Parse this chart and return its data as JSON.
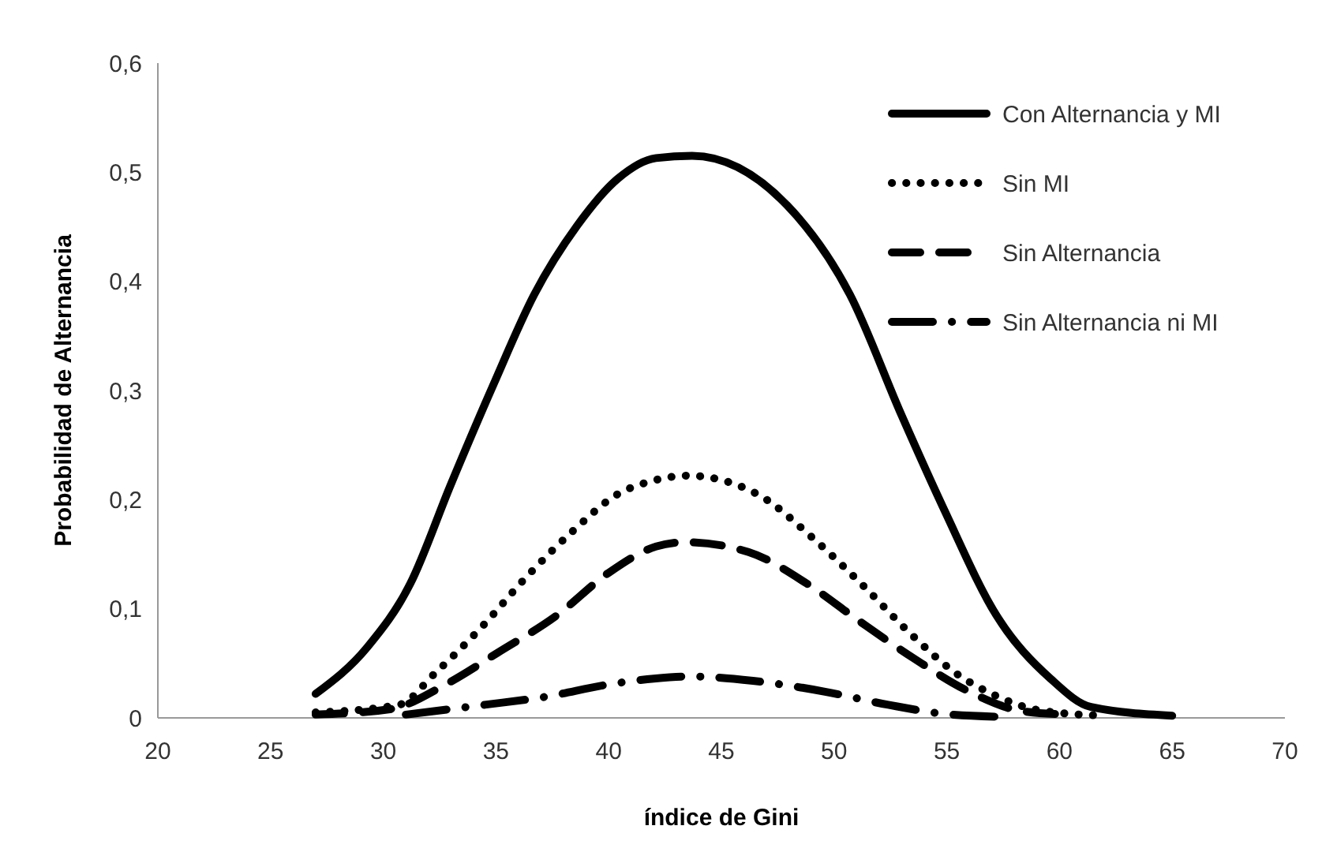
{
  "chart_data": {
    "type": "line",
    "xlabel": "índice de Gini",
    "ylabel": "Probabilidad de Alternancia",
    "xlim": [
      20,
      70
    ],
    "xticks": [
      20,
      25,
      30,
      35,
      40,
      45,
      50,
      55,
      60,
      65,
      70
    ],
    "ylim": [
      0,
      0.6
    ],
    "yticks": [
      0,
      {
        "value": 0.1,
        "label": "0,1"
      },
      {
        "value": 0.2,
        "label": "0,2"
      },
      {
        "value": 0.3,
        "label": "0,3"
      },
      {
        "value": 0.4,
        "label": "0,4"
      },
      {
        "value": 0.5,
        "label": "0,5"
      },
      {
        "value": 0.6,
        "label": "0,6"
      }
    ],
    "grid": false,
    "legend": "top right",
    "series": [
      {
        "name": "Con Alternancia y MI",
        "color": "#000000",
        "line_style": "solid",
        "x": [
          27,
          29.3,
          31.2,
          33,
          34.9,
          36.7,
          38.6,
          40.4,
          42.1,
          43.7,
          47.9,
          50.7,
          53,
          54.9,
          57.2,
          59.6,
          61.4,
          65
        ],
        "values": [
          0.022,
          0.065,
          0.123,
          0.214,
          0.306,
          0.388,
          0.451,
          0.494,
          0.513,
          0.515,
          0.47,
          0.388,
          0.277,
          0.19,
          0.094,
          0.036,
          0.01,
          0.002
        ]
      },
      {
        "name": "Sin MI",
        "color": "#000000",
        "line_style": "dotted",
        "x": [
          27,
          30.7,
          32.3,
          34.4,
          36.3,
          38.4,
          40.4,
          41.9,
          43.5,
          46.6,
          49.1,
          51.2,
          53.5,
          55.4,
          57,
          59.1,
          62
        ],
        "values": [
          0.005,
          0.012,
          0.041,
          0.084,
          0.128,
          0.171,
          0.205,
          0.217,
          0.222,
          0.205,
          0.164,
          0.123,
          0.075,
          0.041,
          0.022,
          0.007,
          0.002
        ]
      },
      {
        "name": "Sin Alternancia",
        "color": "#000000",
        "line_style": "dashed",
        "x": [
          27,
          30.3,
          32.8,
          35.1,
          37.7,
          40,
          42.1,
          43.4,
          46.2,
          48.8,
          51.1,
          53.5,
          56,
          58.4,
          60.5
        ],
        "values": [
          0.003,
          0.008,
          0.031,
          0.06,
          0.094,
          0.133,
          0.157,
          0.161,
          0.152,
          0.123,
          0.089,
          0.055,
          0.024,
          0.006,
          0.003
        ]
      },
      {
        "name": "Sin Alternancia ni MI",
        "color": "#000000",
        "line_style": "dashdot",
        "x": [
          31,
          34.5,
          37.1,
          40.1,
          42,
          43.6,
          46.4,
          49.6,
          52.4,
          55.2,
          57.5
        ],
        "values": [
          0.003,
          0.012,
          0.019,
          0.031,
          0.036,
          0.038,
          0.034,
          0.024,
          0.012,
          0.003,
          0.001
        ]
      }
    ]
  }
}
